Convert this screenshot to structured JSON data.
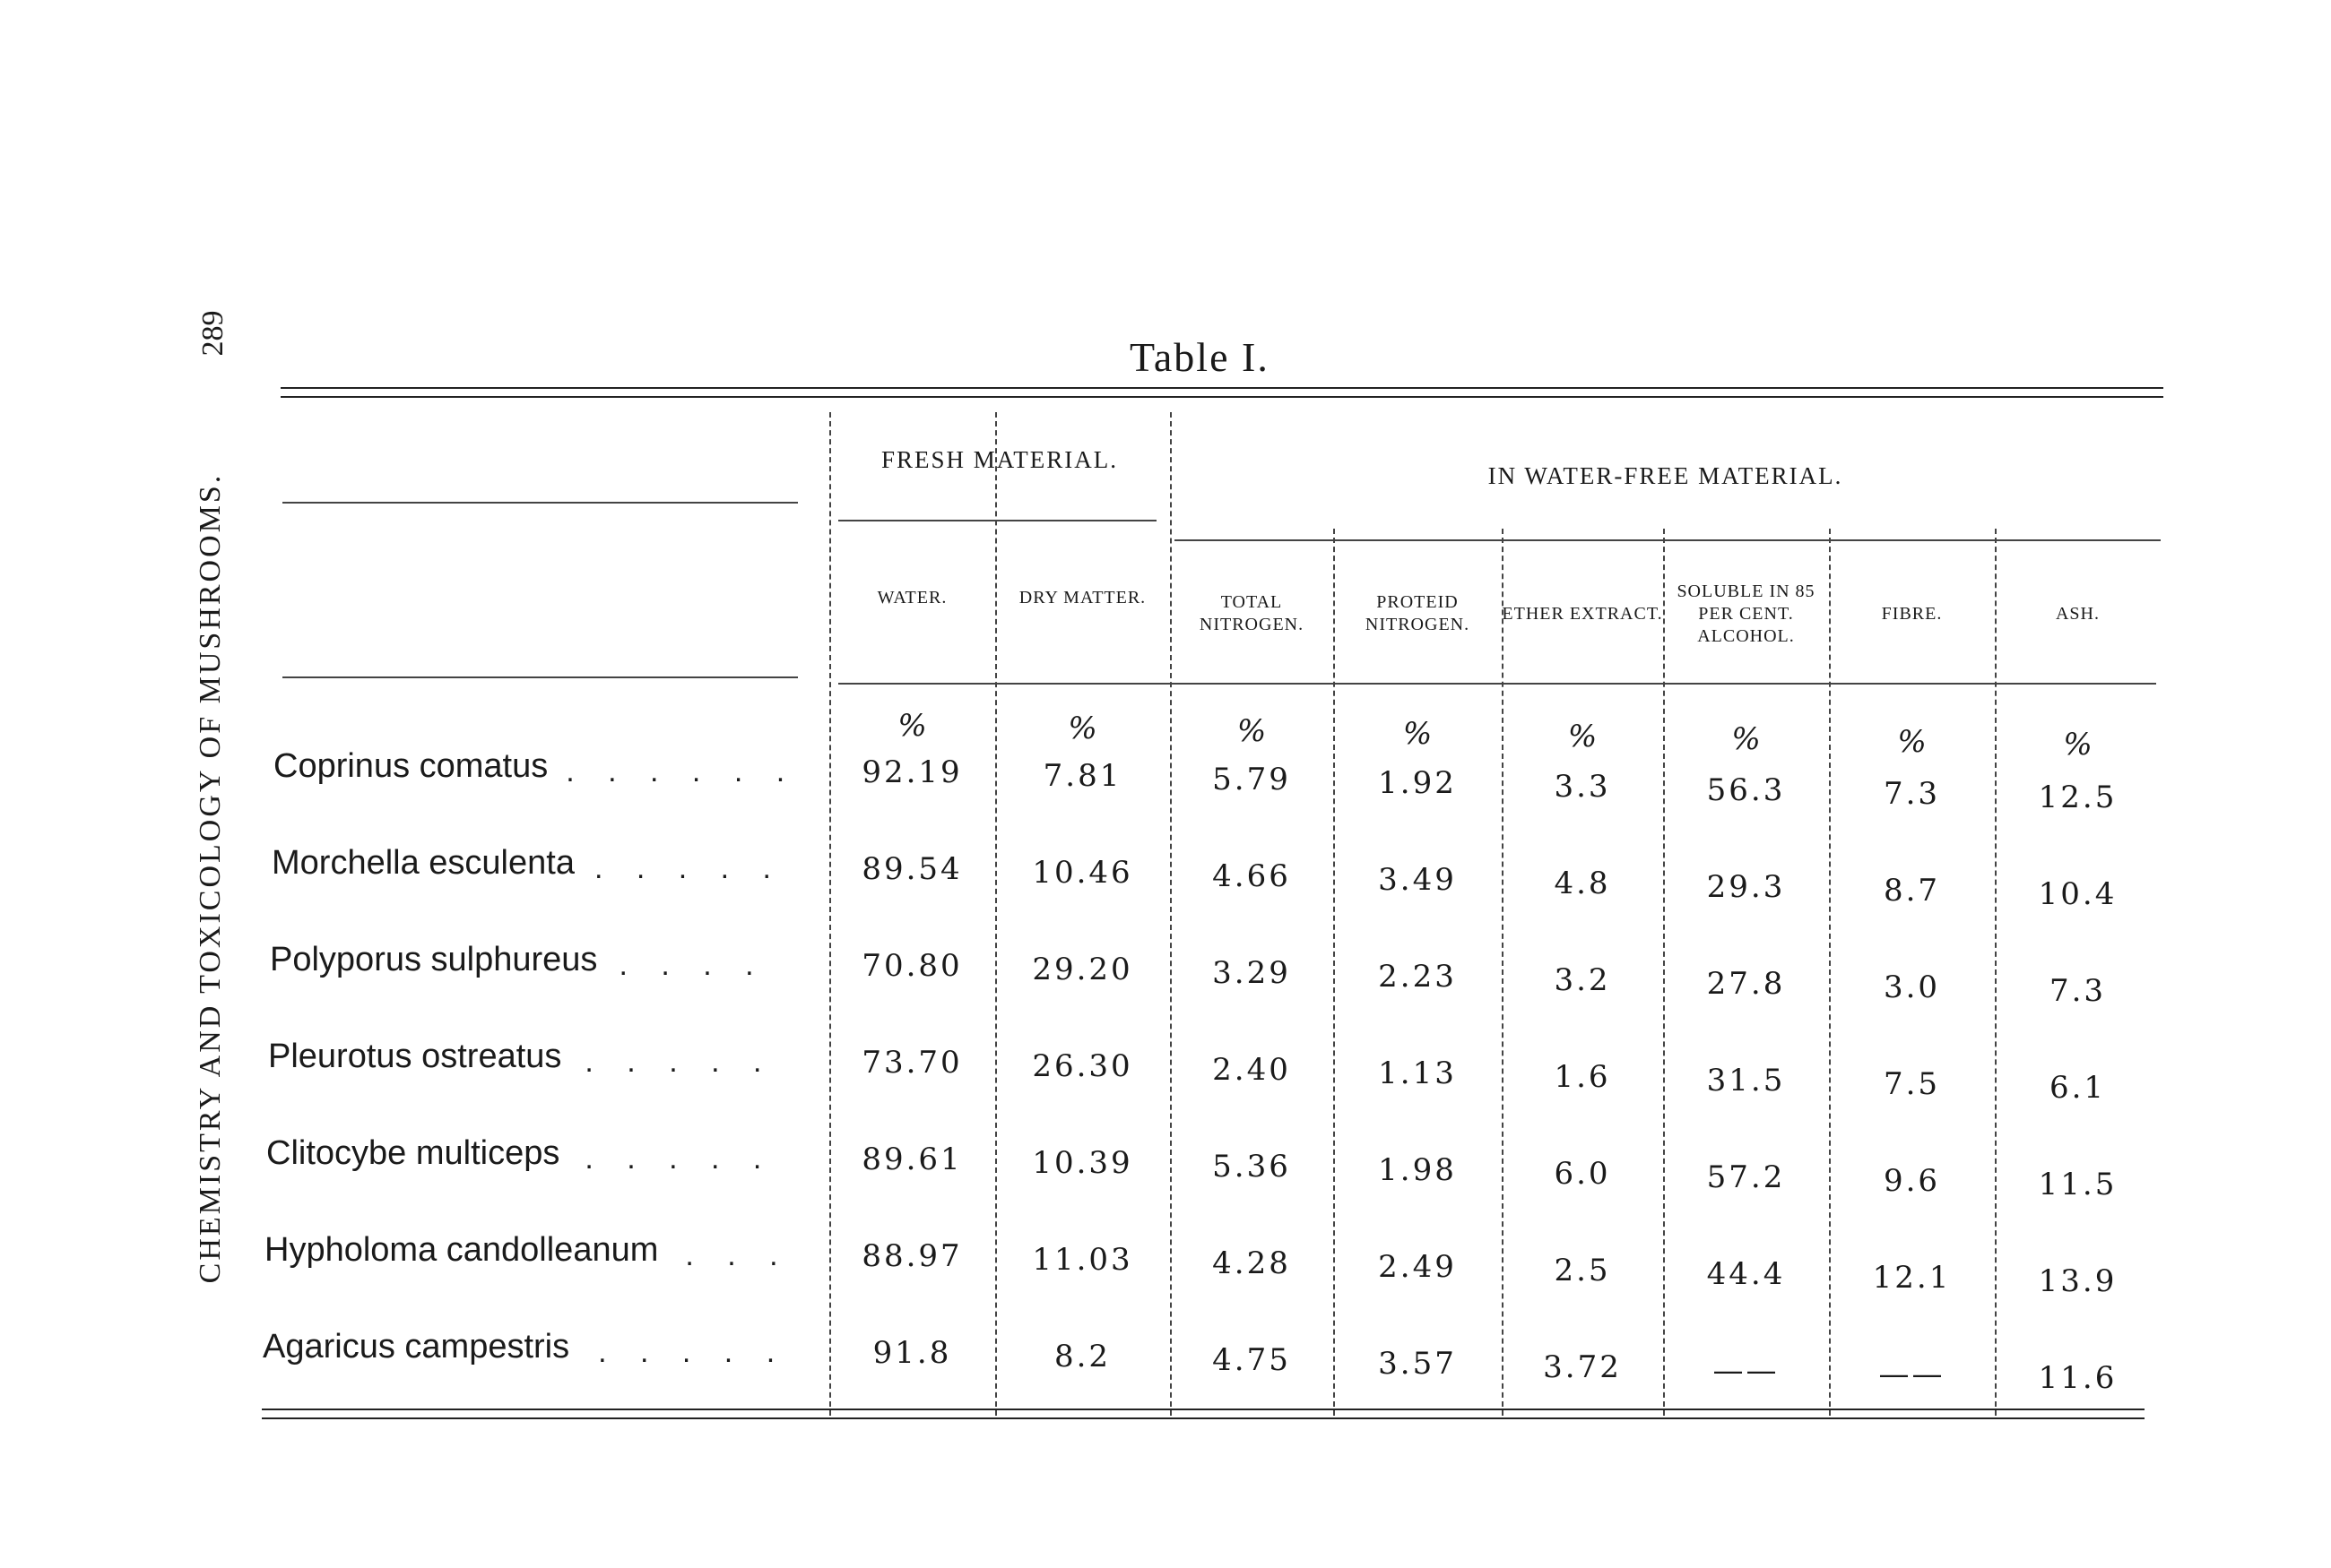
{
  "page": {
    "page_number": "289",
    "running_head": "CHEMISTRY AND TOXICOLOGY OF MUSHROOMS."
  },
  "table": {
    "title": "Table I.",
    "groups": {
      "fresh": "FRESH MATERIAL.",
      "water_free": "IN WATER-FREE MATERIAL."
    },
    "columns": [
      "WATER.",
      "DRY MATTER.",
      "TOTAL NITROGEN.",
      "PROTEID NITROGEN.",
      "ETHER EXTRACT.",
      "SOLUBLE IN 85 PER CENT. ALCOHOL.",
      "FIBRE.",
      "ASH."
    ],
    "unit": "%",
    "rows": [
      {
        "name": "Coprinus comatus",
        "values": [
          "92.19",
          "7.81",
          "5.79",
          "1.92",
          "3.3",
          "56.3",
          "7.3",
          "12.5"
        ]
      },
      {
        "name": "Morchella esculenta",
        "values": [
          "89.54",
          "10.46",
          "4.66",
          "3.49",
          "4.8",
          "29.3",
          "8.7",
          "10.4"
        ]
      },
      {
        "name": "Polyporus sulphureus",
        "values": [
          "70.80",
          "29.20",
          "3.29",
          "2.23",
          "3.2",
          "27.8",
          "3.0",
          "7.3"
        ]
      },
      {
        "name": "Pleurotus ostreatus",
        "values": [
          "73.70",
          "26.30",
          "2.40",
          "1.13",
          "1.6",
          "31.5",
          "7.5",
          "6.1"
        ]
      },
      {
        "name": "Clitocybe multiceps",
        "values": [
          "89.61",
          "10.39",
          "5.36",
          "1.98",
          "6.0",
          "57.2",
          "9.6",
          "11.5"
        ]
      },
      {
        "name": "Hypholoma candolleanum",
        "values": [
          "88.97",
          "11.03",
          "4.28",
          "2.49",
          "2.5",
          "44.4",
          "12.1",
          "13.9"
        ]
      },
      {
        "name": "Agaricus campestris",
        "values": [
          "91.8",
          "8.2",
          "4.75",
          "3.57",
          "3.72",
          "——",
          "——",
          "11.6"
        ]
      }
    ]
  }
}
